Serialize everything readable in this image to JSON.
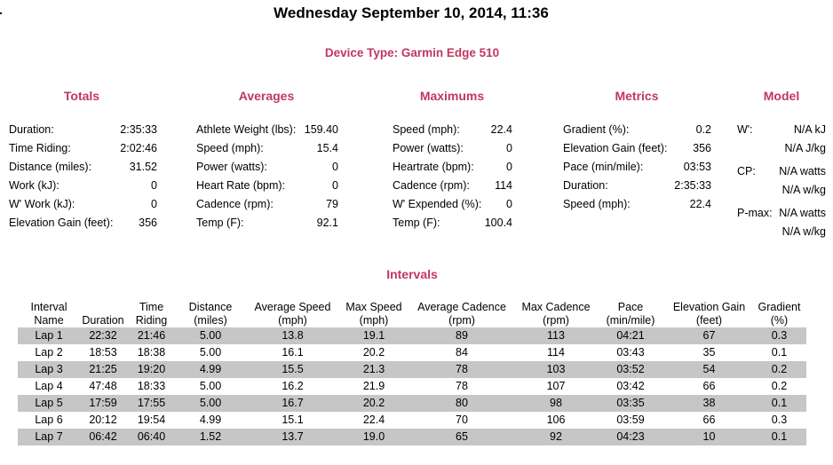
{
  "header": {
    "title": "Wednesday September 10, 2014, 11:36",
    "device": "Device Type: Garmin Edge 510"
  },
  "colors": {
    "accent": "#c0385f",
    "row_shade": "#c6c6c6"
  },
  "totals": {
    "heading": "Totals",
    "rows": [
      {
        "label": "Duration:",
        "value": "2:35:33"
      },
      {
        "label": "Time Riding:",
        "value": "2:02:46"
      },
      {
        "label": "Distance (miles):",
        "value": "31.52"
      },
      {
        "label": "Work (kJ):",
        "value": "0"
      },
      {
        "label": "W' Work (kJ):",
        "value": "0"
      },
      {
        "label": "Elevation Gain (feet):",
        "value": "356"
      }
    ]
  },
  "averages": {
    "heading": "Averages",
    "rows": [
      {
        "label": "Athlete Weight (lbs):",
        "value": "159.40"
      },
      {
        "label": "Speed (mph):",
        "value": "15.4"
      },
      {
        "label": "Power (watts):",
        "value": "0"
      },
      {
        "label": "Heart Rate (bpm):",
        "value": "0"
      },
      {
        "label": "Cadence (rpm):",
        "value": "79"
      },
      {
        "label": "Temp (F):",
        "value": "92.1"
      }
    ]
  },
  "maximums": {
    "heading": "Maximums",
    "rows": [
      {
        "label": "Speed (mph):",
        "value": "22.4"
      },
      {
        "label": "Power (watts):",
        "value": "0"
      },
      {
        "label": "Heartrate (bpm):",
        "value": "0"
      },
      {
        "label": "Cadence (rpm):",
        "value": "114"
      },
      {
        "label": "W' Expended (%):",
        "value": "0"
      },
      {
        "label": "Temp (F):",
        "value": "100.4"
      }
    ]
  },
  "metrics": {
    "heading": "Metrics",
    "rows": [
      {
        "label": "Gradient (%):",
        "value": "0.2"
      },
      {
        "label": "Elevation Gain (feet):",
        "value": "356"
      },
      {
        "label": "Pace (min/mile):",
        "value": "03:53"
      },
      {
        "label": "Duration:",
        "value": "2:35:33"
      },
      {
        "label": "Speed (mph):",
        "value": "22.4"
      }
    ]
  },
  "model": {
    "heading": "Model",
    "w_prime": {
      "label": "W':",
      "value1": "N/A kJ",
      "value2": "N/A J/kg"
    },
    "cp": {
      "label": "CP:",
      "value1": "N/A watts",
      "value2": "N/A w/kg"
    },
    "pmax": {
      "label": "P-max:",
      "value1": "N/A watts",
      "value2": "N/A w/kg"
    }
  },
  "intervals": {
    "heading": "Intervals",
    "columns": [
      {
        "l1": "Interval",
        "l2": "Name"
      },
      {
        "l1": "",
        "l2": "Duration"
      },
      {
        "l1": "Time",
        "l2": "Riding"
      },
      {
        "l1": "Distance",
        "l2": "(miles)"
      },
      {
        "l1": "Average Speed",
        "l2": "(mph)"
      },
      {
        "l1": "Max Speed",
        "l2": "(mph)"
      },
      {
        "l1": "Average Cadence",
        "l2": "(rpm)"
      },
      {
        "l1": "Max Cadence",
        "l2": "(rpm)"
      },
      {
        "l1": "Pace",
        "l2": "(min/mile)"
      },
      {
        "l1": "Elevation Gain",
        "l2": "(feet)"
      },
      {
        "l1": "Gradient",
        "l2": "(%)"
      }
    ],
    "rows": [
      [
        "Lap 1",
        "22:32",
        "21:46",
        "5.00",
        "13.8",
        "19.1",
        "89",
        "113",
        "04:21",
        "67",
        "0.3"
      ],
      [
        "Lap 2",
        "18:53",
        "18:38",
        "5.00",
        "16.1",
        "20.2",
        "84",
        "114",
        "03:43",
        "35",
        "0.1"
      ],
      [
        "Lap 3",
        "21:25",
        "19:20",
        "4.99",
        "15.5",
        "21.3",
        "78",
        "103",
        "03:52",
        "54",
        "0.2"
      ],
      [
        "Lap 4",
        "47:48",
        "18:33",
        "5.00",
        "16.2",
        "21.9",
        "78",
        "107",
        "03:42",
        "66",
        "0.2"
      ],
      [
        "Lap 5",
        "17:59",
        "17:55",
        "5.00",
        "16.7",
        "20.2",
        "80",
        "98",
        "03:35",
        "38",
        "0.1"
      ],
      [
        "Lap 6",
        "20:12",
        "19:54",
        "4.99",
        "15.1",
        "22.4",
        "70",
        "106",
        "03:59",
        "66",
        "0.3"
      ],
      [
        "Lap 7",
        "06:42",
        "06:40",
        "1.52",
        "13.7",
        "19.0",
        "65",
        "92",
        "04:23",
        "10",
        "0.1"
      ]
    ]
  }
}
